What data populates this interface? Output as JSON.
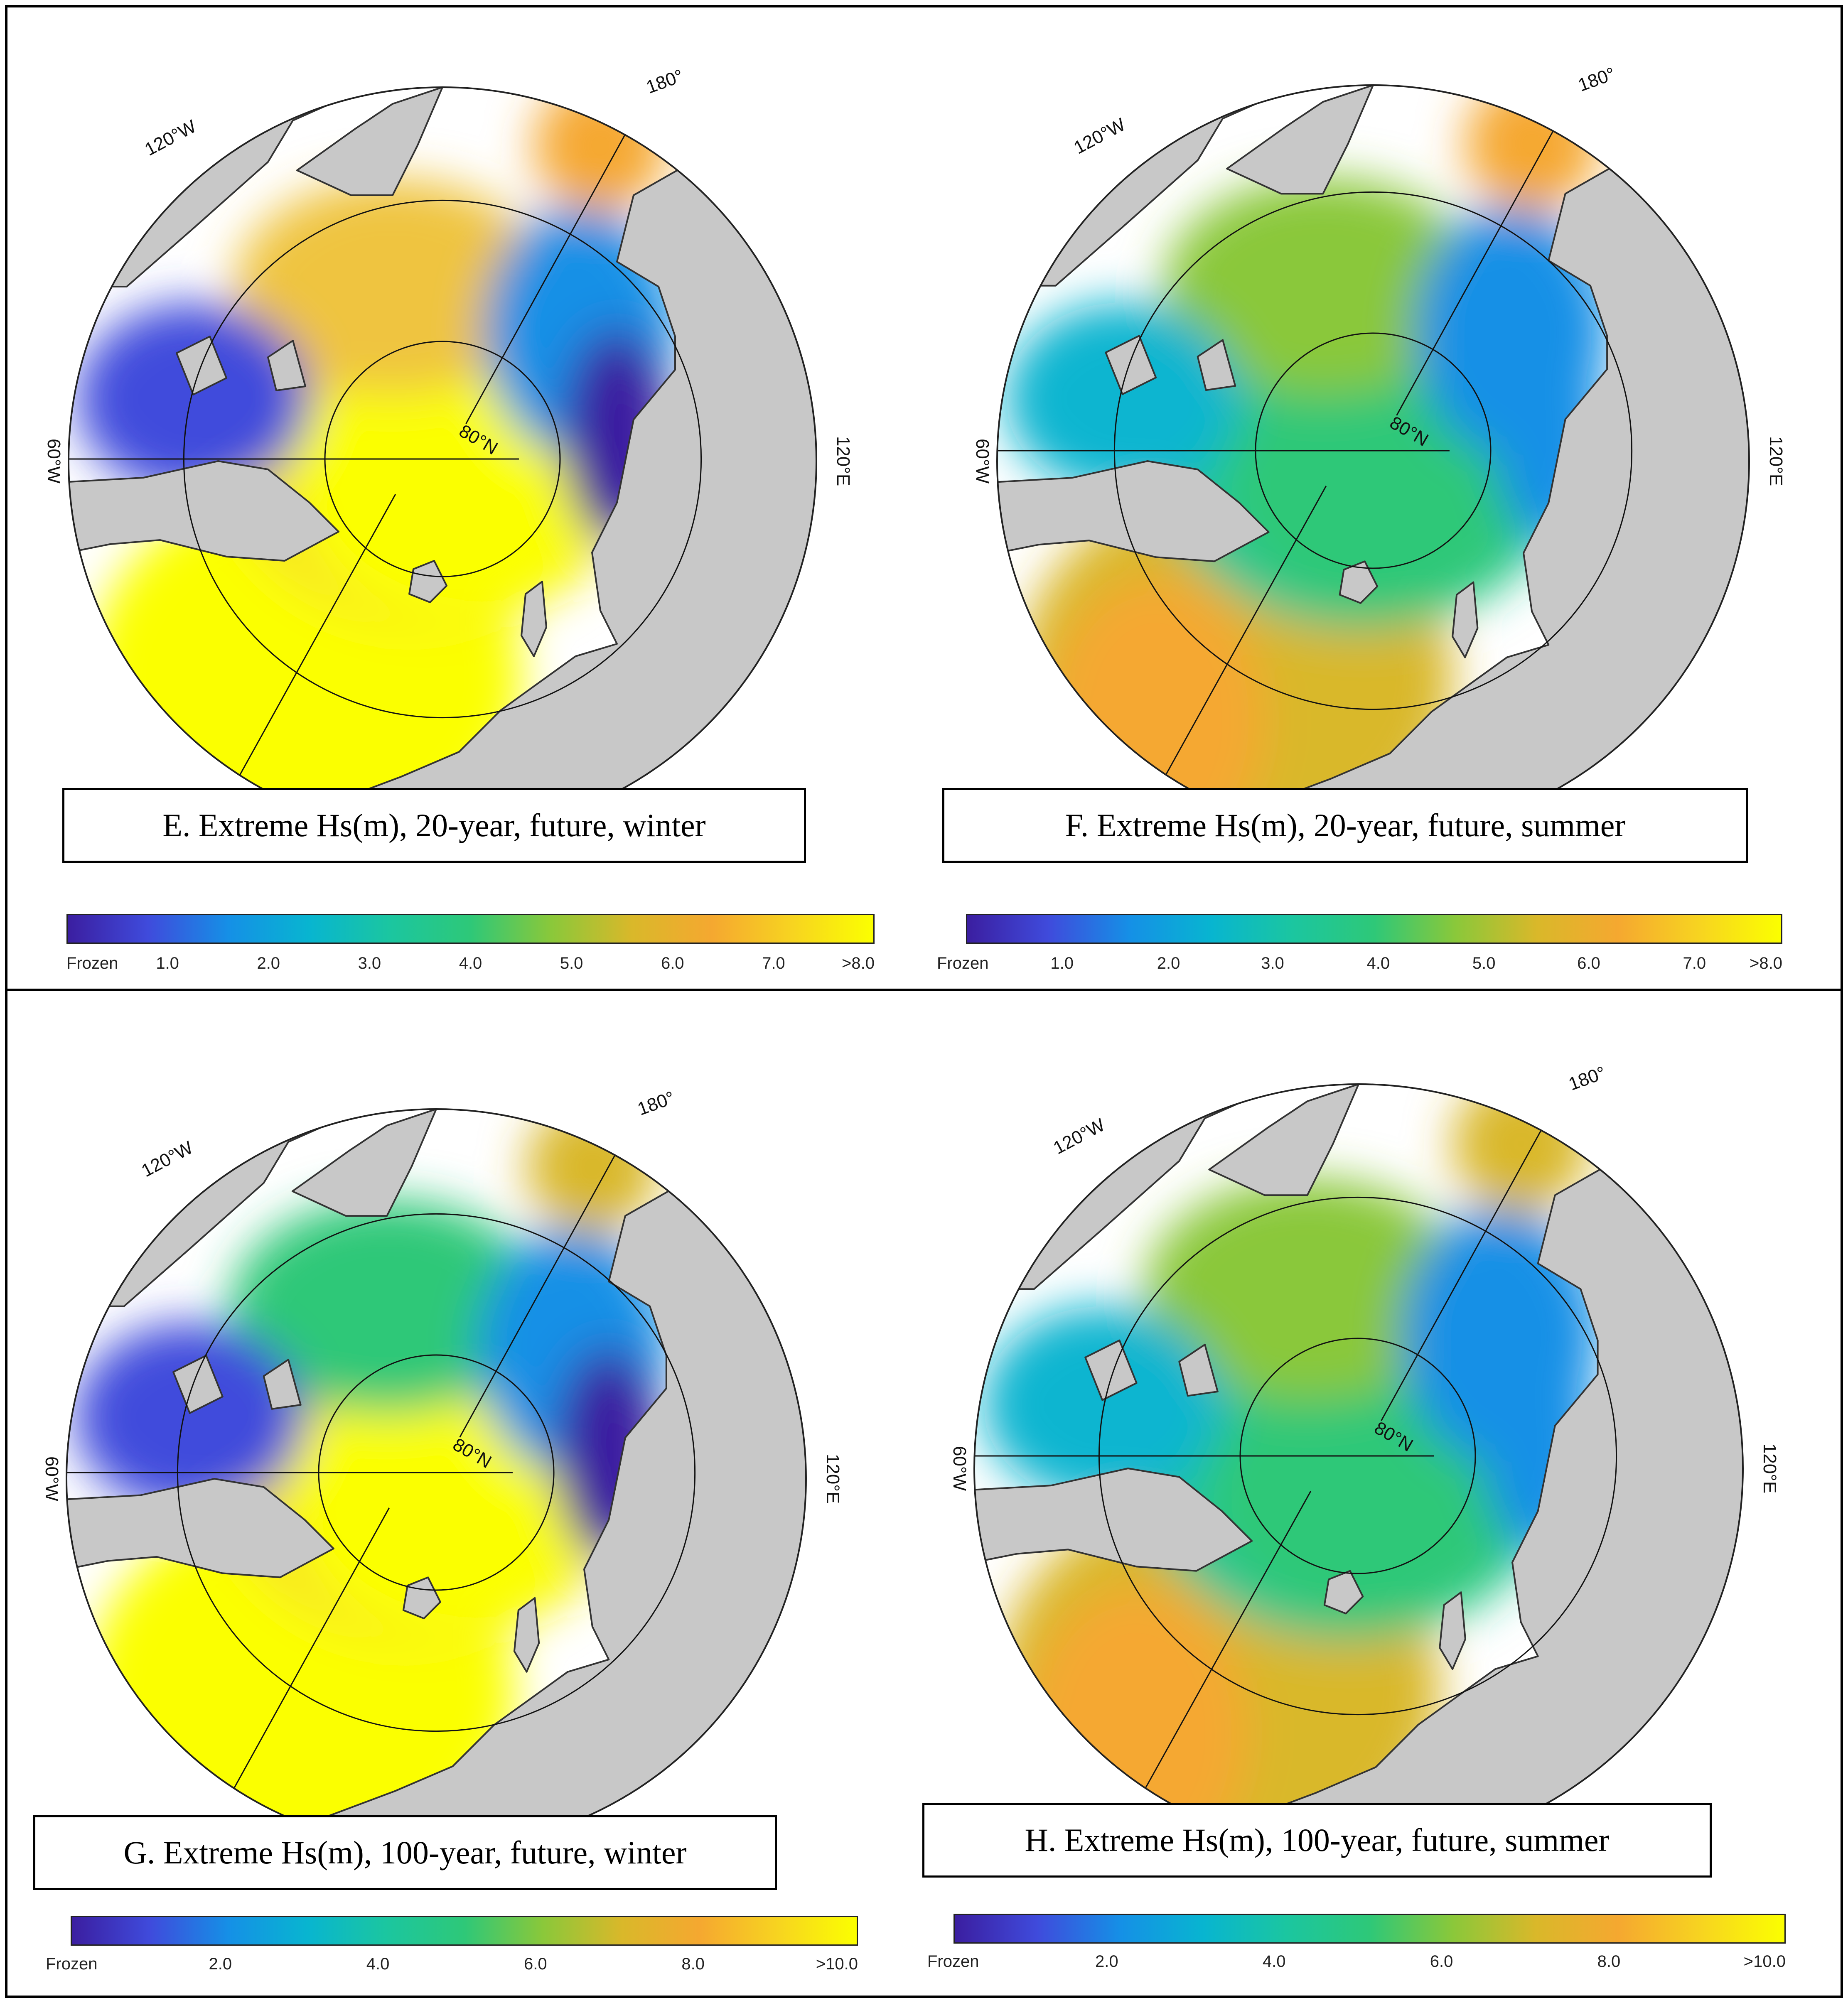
{
  "figure": {
    "colors": {
      "land": "#c8c8c8",
      "land_outline": "#333333",
      "ocean_blank": "#ffffff",
      "grid_line": "#111111",
      "frame": "#000000",
      "colormap": [
        "#3b1ea0",
        "#3f4bdc",
        "#1590e6",
        "#08b5d0",
        "#1bc6a0",
        "#2ec878",
        "#8ac83a",
        "#d9b82a",
        "#f5a830",
        "#f7d420",
        "#fbff00"
      ]
    },
    "panels": [
      {
        "id": "E",
        "title": "E. Extreme Hs(m), 20-year, future, winter",
        "graticule": {
          "lon_120w": "120°W",
          "lon_180": "180°",
          "lon_60w": "60°W",
          "lon_120e": "120°E",
          "lat_80n": "80°N"
        },
        "colorbar": {
          "ticks": [
            "Frozen",
            "1.0",
            "2.0",
            "3.0",
            "4.0",
            "5.0",
            "6.0",
            "7.0",
            ">8.0"
          ]
        },
        "field": {
          "center": "#fbff00",
          "central_arctic": "#f7e02a",
          "beaufort": "#efc440",
          "canadian_archipelago": "#3f4bdc",
          "east_siberian": "#1590e6",
          "laptev": "#3b1ea0",
          "barents_kara": "#fbff00",
          "bering": "#f5a830",
          "north_atlantic": "#fbff00"
        }
      },
      {
        "id": "F",
        "title": "F. Extreme Hs(m), 20-year, future, summer",
        "graticule": {
          "lon_120w": "120°W",
          "lon_180": "180°",
          "lon_60w": "60°W",
          "lon_120e": "120°E",
          "lat_80n": "80°N"
        },
        "colorbar": {
          "ticks": [
            "Frozen",
            "1.0",
            "2.0",
            "3.0",
            "4.0",
            "5.0",
            "6.0",
            "7.0",
            ">8.0"
          ]
        },
        "field": {
          "center": "#2ec878",
          "central_arctic": "#1bc6a0",
          "beaufort": "#8ac83a",
          "canadian_archipelago": "#08b5d0",
          "east_siberian": "#1590e6",
          "laptev": "#1590e6",
          "barents_kara": "#d9b82a",
          "bering": "#f5a830",
          "north_atlantic": "#f5a830"
        }
      },
      {
        "id": "G",
        "title": "G. Extreme Hs(m), 100-year, future, winter",
        "graticule": {
          "lon_120w": "120°W",
          "lon_180": "180°",
          "lon_60w": "60°W",
          "lon_120e": "120°E",
          "lat_80n": "80°N"
        },
        "colorbar": {
          "ticks": [
            "Frozen",
            "2.0",
            "4.0",
            "6.0",
            "8.0",
            ">10.0"
          ]
        },
        "field": {
          "center": "#fbff00",
          "central_arctic": "#f7e02a",
          "beaufort": "#2ec878",
          "canadian_archipelago": "#3f4bdc",
          "east_siberian": "#1590e6",
          "laptev": "#3b1ea0",
          "barents_kara": "#fbff00",
          "bering": "#d9b82a",
          "north_atlantic": "#fbff00"
        }
      },
      {
        "id": "H",
        "title": "H. Extreme Hs(m), 100-year, future, summer",
        "graticule": {
          "lon_120w": "120°W",
          "lon_180": "180°",
          "lon_60w": "60°W",
          "lon_120e": "120°E",
          "lat_80n": "80°N"
        },
        "colorbar": {
          "ticks": [
            "Frozen",
            "2.0",
            "4.0",
            "6.0",
            "8.0",
            ">10.0"
          ]
        },
        "field": {
          "center": "#2ec878",
          "central_arctic": "#1bc6a0",
          "beaufort": "#8ac83a",
          "canadian_archipelago": "#08b5d0",
          "east_siberian": "#1590e6",
          "laptev": "#1590e6",
          "barents_kara": "#d9b82a",
          "bering": "#d9b82a",
          "north_atlantic": "#f5a830"
        }
      }
    ]
  }
}
